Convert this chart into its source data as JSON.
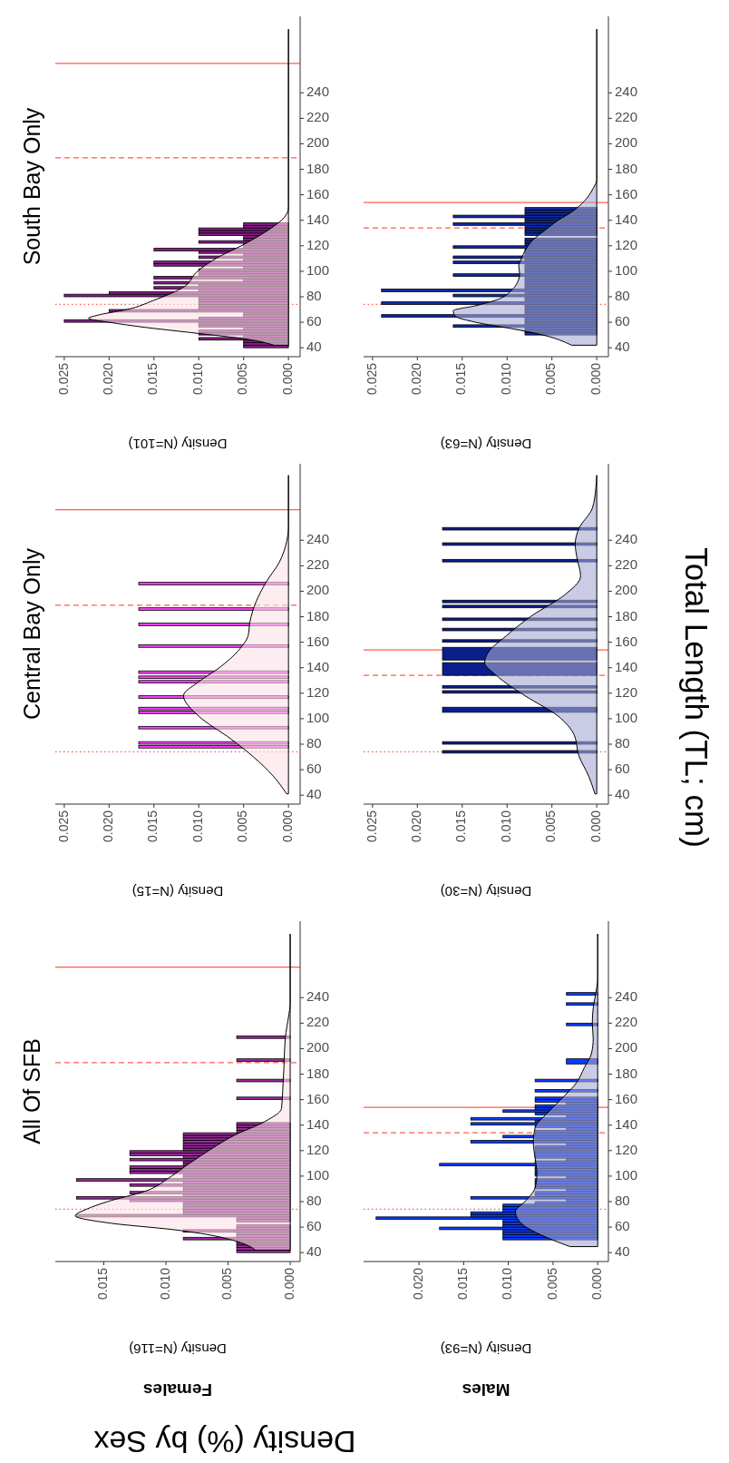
{
  "chart_data": [
    {
      "type": "histogram",
      "orientation": "horizontal",
      "title": "All Of SFB",
      "subtitle": "Females",
      "xlabel": "Density (N=116)",
      "annotations": [
        "Density (%) by Sex"
      ],
      "xlim": [
        0.0189,
        -0.0008
      ],
      "xticks": [
        {
          "value": 0.015,
          "label": "0.015"
        },
        {
          "value": 0.01,
          "label": "0.010"
        },
        {
          "value": 0.005,
          "label": "0.005"
        },
        {
          "value": 0,
          "label": "0.000"
        }
      ],
      "ylim": [
        33,
        300
      ],
      "yticks": [
        40,
        60,
        80,
        100,
        120,
        140,
        160,
        180,
        200,
        220,
        240
      ],
      "series": [
        {
          "color": "#9a2a9c",
          "bins": [
            40,
            42,
            44,
            46,
            48,
            50,
            52,
            54,
            56,
            58,
            60,
            62,
            64,
            66,
            68,
            70,
            72,
            74,
            76,
            78,
            80,
            82,
            84,
            86,
            88,
            90,
            92,
            94,
            96,
            98,
            100,
            102,
            104,
            106,
            108,
            110,
            112,
            114,
            116,
            118,
            120,
            122,
            124,
            126,
            128,
            130,
            132,
            134,
            136,
            138,
            140,
            142,
            160,
            162,
            174,
            176,
            190,
            192,
            208,
            210
          ],
          "values": [
            0.0043,
            0.0043,
            0.0043,
            0.0043,
            0.0043,
            0.0086,
            0.0043,
            0.0043,
            0.0086,
            0.0043,
            0.0043,
            0,
            0.0043,
            0.0043,
            0.0172,
            0.0086,
            0.0086,
            0.0086,
            0.0086,
            0.0086,
            0.0129,
            0.0172,
            0.0086,
            0.0129,
            0.0086,
            0.0086,
            0.0129,
            0.0086,
            0.0172,
            0.0086,
            0.0086,
            0.0129,
            0.0129,
            0.0129,
            0.0086,
            0.0086,
            0.0129,
            0.0086,
            0.0129,
            0.0129,
            0.0086,
            0.0086,
            0.0086,
            0.0086,
            0.0086,
            0.0086,
            0.0086,
            0.0043,
            0.0043,
            0.0043,
            0.0043,
            0,
            0.0043,
            0,
            0.0043,
            0,
            0.0043,
            0,
            0.0043
          ]
        },
        {
          "type": "area",
          "color": "#fde1e6",
          "x": [
            42,
            46,
            58,
            63,
            69,
            74,
            80,
            88,
            99,
            110,
            121,
            132,
            143,
            153,
            167,
            186,
            208,
            227,
            235,
            290
          ],
          "values": [
            0.0028,
            0.0035,
            0.0094,
            0.0144,
            0.0173,
            0.0164,
            0.0147,
            0.0117,
            0.0097,
            0.0081,
            0.0064,
            0.0045,
            0.002,
            0.0007,
            0.0006,
            0.0005,
            0.0004,
            0.0001,
            0,
            0
          ]
        }
      ],
      "ref_lines": [
        {
          "axis": "y",
          "value": 74,
          "color": "#ff5c4d",
          "line_style": "dotted"
        },
        {
          "axis": "y",
          "value": 189,
          "color": "#ff5c4d",
          "line_style": "dashed"
        },
        {
          "axis": "y",
          "value": 264,
          "color": "#ff5c4d",
          "line_style": "solid"
        }
      ]
    },
    {
      "type": "histogram",
      "orientation": "horizontal",
      "title": "Central Bay Only",
      "xlabel": "Density (N=15)",
      "xlim": [
        0.026,
        -0.0013
      ],
      "xticks": [
        {
          "value": 0.025,
          "label": "0.025"
        },
        {
          "value": 0.02,
          "label": "0.020"
        },
        {
          "value": 0.015,
          "label": "0.015"
        },
        {
          "value": 0.01,
          "label": "0.010"
        },
        {
          "value": 0.005,
          "label": "0.005"
        },
        {
          "value": 0,
          "label": "0.000"
        }
      ],
      "ylim": [
        33,
        300
      ],
      "yticks": [
        40,
        60,
        80,
        100,
        120,
        140,
        160,
        180,
        200,
        220,
        240
      ],
      "series": [
        {
          "color": "#ff40ff",
          "bins": [
            77,
            79,
            80,
            82,
            92,
            94,
            104,
            106,
            107,
            109,
            116,
            118,
            128,
            130,
            131.5,
            133.5,
            135.5,
            137.5,
            156,
            158,
            173,
            175,
            185,
            187,
            205,
            207
          ],
          "values": [
            0.0167,
            0,
            0.0167,
            0,
            0.0167,
            0,
            0.0167,
            0,
            0.0167,
            0,
            0.0167,
            0,
            0.0167,
            0,
            0.0167,
            0,
            0.0167,
            0,
            0.0167,
            0,
            0.0167,
            0,
            0.0167,
            0,
            0.0167
          ]
        },
        {
          "type": "area",
          "color": "#fde1e6",
          "x": [
            41,
            55,
            70,
            84,
            102,
            118,
            129,
            139,
            155,
            165,
            176,
            192,
            207,
            223,
            239,
            250,
            291
          ],
          "values": [
            0.0002,
            0.0017,
            0.0039,
            0.0064,
            0.01,
            0.0117,
            0.01,
            0.0079,
            0.0054,
            0.0045,
            0.0043,
            0.0036,
            0.0025,
            0.001,
            0.0002,
            0,
            0
          ]
        }
      ],
      "ref_lines": [
        {
          "axis": "y",
          "value": 74,
          "color": "#ff5c4d",
          "line_style": "dotted"
        },
        {
          "axis": "y",
          "value": 189,
          "color": "#ff5c4d",
          "line_style": "dashed"
        },
        {
          "axis": "y",
          "value": 264,
          "color": "#ff5c4d",
          "line_style": "solid"
        }
      ]
    },
    {
      "type": "histogram",
      "orientation": "horizontal",
      "title": "South Bay Only",
      "xlabel": "Density (N=101)",
      "xlim": [
        0.026,
        -0.0013
      ],
      "xticks": [
        {
          "value": 0.025,
          "label": "0.025"
        },
        {
          "value": 0.02,
          "label": "0.020"
        },
        {
          "value": 0.015,
          "label": "0.015"
        },
        {
          "value": 0.01,
          "label": "0.010"
        },
        {
          "value": 0.005,
          "label": "0.005"
        },
        {
          "value": 0,
          "label": "0.000"
        }
      ],
      "ylim": [
        33,
        300
      ],
      "yticks": [
        40,
        60,
        80,
        100,
        120,
        140,
        160,
        180,
        200,
        220,
        240
      ],
      "series": [
        {
          "color": "#8a1c8a",
          "bins": [
            40,
            42,
            44,
            46,
            48,
            50,
            52,
            54,
            56,
            58,
            60,
            62,
            64,
            66,
            68,
            70,
            72,
            74,
            76,
            78,
            80,
            82,
            84,
            86,
            88,
            90,
            92,
            94,
            96,
            98,
            100,
            102,
            104,
            106,
            108,
            110,
            112,
            114,
            116,
            118,
            120,
            122,
            124,
            126,
            128,
            130,
            132,
            134,
            136,
            138
          ],
          "values": [
            0.005,
            0.005,
            0.005,
            0.01,
            0.005,
            0.01,
            0.01,
            0.005,
            0.01,
            0.01,
            0.025,
            0.01,
            0.005,
            0.005,
            0.02,
            0.01,
            0.01,
            0.01,
            0.01,
            0.01,
            0.025,
            0.02,
            0.01,
            0.015,
            0.01,
            0.015,
            0.005,
            0.015,
            0.01,
            0.01,
            0.01,
            0.005,
            0.015,
            0.015,
            0.005,
            0.01,
            0.005,
            0.01,
            0.015,
            0.005,
            0.005,
            0.01,
            0.005,
            0.005,
            0.01,
            0.01,
            0.01,
            0.005,
            0.005
          ]
        },
        {
          "type": "area",
          "color": "#fde1e6",
          "x": [
            42,
            46,
            52,
            56,
            60,
            63,
            66,
            70,
            77,
            88,
            99,
            110,
            121,
            134,
            142,
            150,
            200,
            290
          ],
          "values": [
            0.0016,
            0.004,
            0.011,
            0.016,
            0.02,
            0.0223,
            0.021,
            0.018,
            0.0151,
            0.0116,
            0.0103,
            0.0081,
            0.005,
            0.0019,
            0.0005,
            0,
            0,
            0
          ]
        }
      ],
      "ref_lines": [
        {
          "axis": "y",
          "value": 74,
          "color": "#ff5c4d",
          "line_style": "dotted"
        },
        {
          "axis": "y",
          "value": 189,
          "color": "#ff5c4d",
          "line_style": "dashed"
        },
        {
          "axis": "y",
          "value": 263,
          "color": "#ff5c4d",
          "line_style": "solid"
        }
      ]
    },
    {
      "type": "histogram",
      "orientation": "horizontal",
      "subtitle": "Males",
      "xlabel": "Density (N=93)",
      "xlim": [
        0.0262,
        -0.0012
      ],
      "xticks": [
        {
          "value": 0.02,
          "label": "0.020"
        },
        {
          "value": 0.015,
          "label": "0.015"
        },
        {
          "value": 0.01,
          "label": "0.010"
        },
        {
          "value": 0.005,
          "label": "0.005"
        },
        {
          "value": 0,
          "label": "0.000"
        }
      ],
      "ylim": [
        33,
        300
      ],
      "yticks": [
        40,
        60,
        80,
        100,
        120,
        140,
        160,
        180,
        200,
        220,
        240
      ],
      "series": [
        {
          "color": "#0a3cff",
          "bins": [
            50,
            52,
            54,
            56,
            58,
            60,
            62,
            64,
            66,
            68,
            70,
            72,
            74,
            76,
            78,
            80,
            82,
            84,
            86,
            88,
            90,
            92,
            94,
            96,
            98,
            100,
            102,
            104,
            106,
            108,
            110,
            112,
            114,
            116,
            118,
            120,
            122,
            124,
            126,
            128,
            130,
            132,
            134,
            136,
            138,
            140,
            142,
            144,
            146,
            148,
            150,
            152,
            154,
            156,
            158,
            160,
            162,
            166,
            168,
            174,
            176,
            188,
            192,
            218,
            220,
            234,
            236,
            242,
            244
          ],
          "values": [
            0.0106,
            0.0106,
            0.0106,
            0.0106,
            0.0177,
            0.0106,
            0.0106,
            0.0106,
            0.0248,
            0.0142,
            0.0142,
            0.0106,
            0.0106,
            0.0106,
            0.007,
            0.0035,
            0.0142,
            0.007,
            0.007,
            0.0035,
            0.007,
            0.007,
            0.007,
            0.007,
            0.0035,
            0.007,
            0.007,
            0.007,
            0.007,
            0.0177,
            0.007,
            0.0035,
            0.007,
            0.007,
            0.007,
            0.007,
            0.007,
            0.0035,
            0.0142,
            0.007,
            0.0106,
            0.007,
            0.007,
            0.0035,
            0.007,
            0.0142,
            0.007,
            0.0142,
            0.0035,
            0.007,
            0.0106,
            0.007,
            0.007,
            0.0035,
            0.007,
            0.007,
            0,
            0.007,
            0,
            0.007,
            0,
            0.0035,
            0,
            0.0035,
            0,
            0.0035,
            0,
            0.0035
          ]
        },
        {
          "type": "area",
          "color": "#a6a9d2",
          "x": [
            44.7,
            55,
            62,
            72,
            81,
            91,
            102,
            114,
            126,
            138,
            149,
            161,
            173,
            185,
            196,
            208,
            220,
            232,
            244,
            255,
            290
          ],
          "values": [
            0.0031,
            0.0067,
            0.0084,
            0.0092,
            0.008,
            0.007,
            0.0068,
            0.007,
            0.0072,
            0.007,
            0.0057,
            0.004,
            0.0024,
            0.0015,
            0.0007,
            0.0005,
            0.0006,
            0.0005,
            0.0002,
            0,
            0
          ]
        }
      ],
      "ref_lines": [
        {
          "axis": "y",
          "value": 74,
          "color": "#ff5c4d",
          "line_style": "dotted"
        },
        {
          "axis": "y",
          "value": 134,
          "color": "#ff5c4d",
          "line_style": "dashed"
        },
        {
          "axis": "y",
          "value": 154,
          "color": "#ff5c4d",
          "line_style": "solid"
        }
      ]
    },
    {
      "type": "histogram",
      "orientation": "horizontal",
      "xlabel": "Density (N=30)",
      "ylabel": "Total Length (TL; cm)",
      "xlim": [
        0.026,
        -0.0013
      ],
      "xticks": [
        {
          "value": 0.025,
          "label": "0.025"
        },
        {
          "value": 0.02,
          "label": "0.020"
        },
        {
          "value": 0.015,
          "label": "0.015"
        },
        {
          "value": 0.01,
          "label": "0.010"
        },
        {
          "value": 0.005,
          "label": "0.005"
        },
        {
          "value": 0,
          "label": "0.000"
        }
      ],
      "ylim": [
        33,
        300
      ],
      "yticks": [
        40,
        60,
        80,
        100,
        120,
        140,
        160,
        180,
        200,
        220,
        240
      ],
      "series": [
        {
          "color": "#0a1e8c",
          "bins": [
            73,
            75,
            80,
            82,
            105,
            109,
            120,
            122,
            124,
            126,
            134,
            144,
            146,
            156,
            160,
            162,
            169,
            171,
            177,
            179,
            187,
            189,
            191,
            193,
            223,
            225,
            236,
            238,
            248,
            250
          ],
          "values": [
            0.0172,
            0,
            0.0172,
            0,
            0.0172,
            0,
            0.0172,
            0,
            0.0172,
            0,
            0.0172,
            0,
            0.0172,
            0,
            0.0172,
            0,
            0.0172,
            0,
            0.0172,
            0,
            0.0172,
            0,
            0.0172,
            0,
            0.0172,
            0,
            0.0172,
            0,
            0.0172
          ]
        },
        {
          "type": "area",
          "color": "#a6a9d2",
          "x": [
            41,
            55,
            71,
            87,
            102,
            118,
            134,
            144,
            152,
            165,
            181,
            197,
            212,
            226,
            237,
            249,
            265,
            281,
            291
          ],
          "values": [
            0.0002,
            0.0009,
            0.002,
            0.0025,
            0.0043,
            0.008,
            0.0112,
            0.0125,
            0.0121,
            0.0101,
            0.0072,
            0.0036,
            0.0018,
            0.0022,
            0.0024,
            0.002,
            0.0005,
            0.0001,
            0
          ]
        }
      ],
      "ref_lines": [
        {
          "axis": "y",
          "value": 74,
          "color": "#ff5c4d",
          "line_style": "dotted"
        },
        {
          "axis": "y",
          "value": 134,
          "color": "#ff5c4d",
          "line_style": "dashed"
        },
        {
          "axis": "y",
          "value": 154,
          "color": "#ff5c4d",
          "line_style": "solid"
        }
      ]
    },
    {
      "type": "histogram",
      "orientation": "horizontal",
      "xlabel": "Density (N=63)",
      "xlim": [
        0.026,
        -0.0013
      ],
      "xticks": [
        {
          "value": 0.025,
          "label": "0.025"
        },
        {
          "value": 0.02,
          "label": "0.020"
        },
        {
          "value": 0.015,
          "label": "0.015"
        },
        {
          "value": 0.01,
          "label": "0.010"
        },
        {
          "value": 0.005,
          "label": "0.005"
        },
        {
          "value": 0,
          "label": "0.000"
        }
      ],
      "ylim": [
        33,
        300
      ],
      "yticks": [
        40,
        60,
        80,
        100,
        120,
        140,
        160,
        180,
        200,
        220,
        240
      ],
      "series": [
        {
          "color": "#0d2aa8",
          "bins": [
            50,
            52,
            54,
            56,
            58,
            60,
            62,
            64,
            66,
            68,
            70,
            72,
            74,
            76,
            78,
            80,
            82,
            84,
            86,
            88,
            90,
            92,
            94,
            96,
            98,
            100,
            102,
            104,
            106,
            108,
            110,
            112,
            114,
            116,
            118,
            120,
            122,
            124,
            126,
            128,
            130,
            132,
            134,
            136,
            138,
            140,
            142,
            144,
            146,
            148,
            150
          ],
          "values": [
            0.008,
            0.008,
            0.008,
            0.016,
            0.008,
            0.008,
            0.008,
            0.024,
            0.008,
            0.008,
            0.008,
            0.008,
            0.024,
            0.008,
            0.008,
            0.016,
            0.008,
            0.024,
            0.008,
            0.008,
            0.008,
            0.008,
            0.008,
            0.016,
            0.008,
            0.008,
            0.008,
            0.008,
            0.016,
            0.008,
            0.016,
            0.008,
            0.008,
            0.008,
            0.016,
            0.008,
            0.008,
            0.008,
            0,
            0.008,
            0.008,
            0.008,
            0.008,
            0.016,
            0.008,
            0.008,
            0.016,
            0.008,
            0.008,
            0.008
          ]
        },
        {
          "type": "area",
          "color": "#a6a9d2",
          "x": [
            42,
            50,
            55,
            60,
            65,
            69,
            73,
            78,
            85,
            92,
            98,
            104,
            110,
            116,
            124,
            132,
            140,
            147,
            155,
            165,
            172,
            290
          ],
          "values": [
            0.0028,
            0.006,
            0.0095,
            0.0135,
            0.0158,
            0.016,
            0.0135,
            0.011,
            0.0095,
            0.0088,
            0.0086,
            0.0087,
            0.0084,
            0.008,
            0.0072,
            0.0058,
            0.0043,
            0.0027,
            0.0014,
            0.0004,
            0,
            0
          ]
        }
      ],
      "ref_lines": [
        {
          "axis": "y",
          "value": 74,
          "color": "#ff5c4d",
          "line_style": "dotted"
        },
        {
          "axis": "y",
          "value": 134,
          "color": "#ff5c4d",
          "line_style": "dashed"
        },
        {
          "axis": "y",
          "value": 154,
          "color": "#ff5c4d",
          "line_style": "solid"
        }
      ]
    }
  ]
}
